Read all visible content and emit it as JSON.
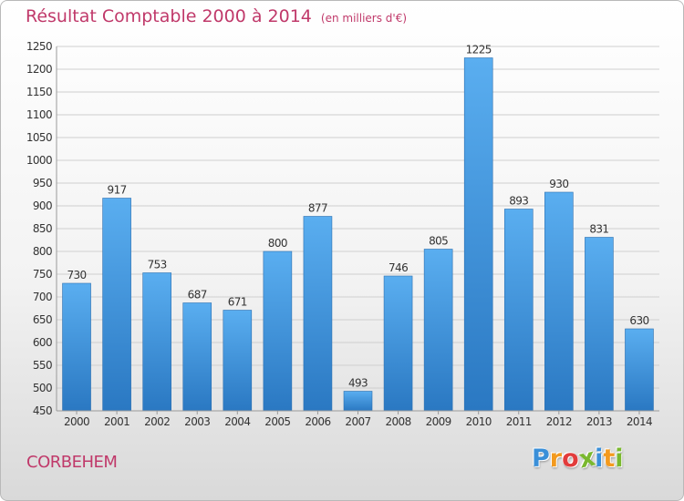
{
  "title": {
    "main": "Résultat Comptable 2000 à 2014",
    "unit": "(en milliers d'€)"
  },
  "location": "CORBEHEM",
  "brand": {
    "letters": [
      "P",
      "r",
      "o",
      "x",
      "i",
      "t",
      "i"
    ],
    "colors": [
      "#3a8fd8",
      "#f39a1e",
      "#e23c3c",
      "#7ab82f",
      "#3a8fd8",
      "#f39a1e",
      "#7ab82f"
    ]
  },
  "chart_data": {
    "type": "bar",
    "title": "Résultat Comptable 2000 à 2014",
    "xlabel": "",
    "ylabel": "",
    "ylim": [
      450,
      1250
    ],
    "yticks": [
      450,
      500,
      550,
      600,
      650,
      700,
      750,
      800,
      850,
      900,
      950,
      1000,
      1050,
      1100,
      1150,
      1200,
      1250
    ],
    "grid": true,
    "bar_color": "#3d8fd6",
    "categories": [
      "2000",
      "2001",
      "2002",
      "2003",
      "2004",
      "2005",
      "2006",
      "2007",
      "2008",
      "2009",
      "2010",
      "2011",
      "2012",
      "2013",
      "2014"
    ],
    "values": [
      730,
      917,
      753,
      687,
      671,
      800,
      877,
      493,
      746,
      805,
      1225,
      893,
      930,
      831,
      630
    ]
  }
}
